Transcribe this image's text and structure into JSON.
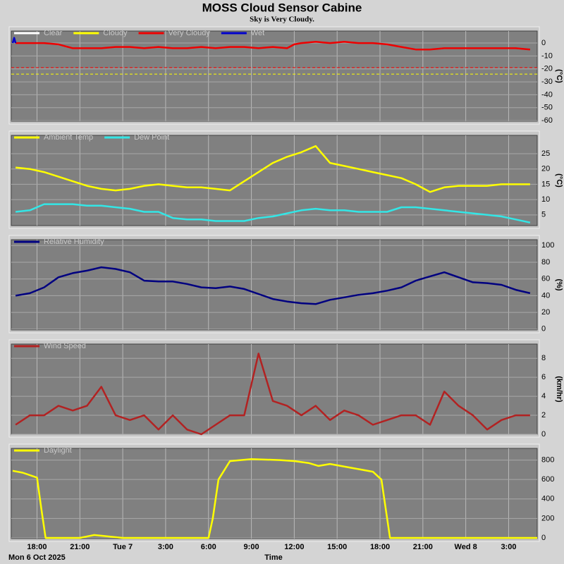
{
  "chart_data": [
    {
      "type": "line",
      "title": "MOSS Cloud Sensor Cabine",
      "subtitle": "Sky is Very Cloudy.",
      "y_label": "(°C)",
      "ylim": [
        -60.5,
        9.3
      ],
      "yticks": [
        0,
        -10,
        -20,
        -30,
        -40,
        -50,
        -60
      ],
      "thresholds": [
        {
          "value": -19,
          "color": "#ff0000"
        },
        {
          "value": -24,
          "color": "#ffff00"
        }
      ],
      "series": [
        {
          "name": "Clear",
          "color": "#ffffff"
        },
        {
          "name": "Cloudy",
          "color": "#ffff00"
        },
        {
          "name": "Very Cloudy",
          "color": "#ee0000",
          "x": [
            16.5,
            17.5,
            18.5,
            19.5,
            20.5,
            21.5,
            22.5,
            23.5,
            24.5,
            25.5,
            26.5,
            27.5,
            28.5,
            29.5,
            30.5,
            31.5,
            32.5,
            33.5,
            34.5,
            35.5,
            36,
            36.5,
            37.5,
            38.5,
            39.5,
            40.5,
            41.5,
            42.5,
            43.5,
            44.5,
            45.5,
            46.5,
            47.5,
            48.5,
            49.5,
            50.5,
            51.5,
            52.5
          ],
          "values": [
            0,
            0,
            0,
            -1,
            -4,
            -4,
            -4,
            -3,
            -3,
            -4,
            -3,
            -4,
            -4,
            -3,
            -4,
            -3,
            -3,
            -4,
            -3,
            -4,
            -1,
            0,
            1,
            0,
            1,
            0,
            0,
            -1,
            -3,
            -5,
            -5,
            -4,
            -4,
            -4,
            -4,
            -4,
            -4,
            -5
          ]
        },
        {
          "name": "Wet",
          "color": "#0000cc",
          "x": [
            16.3,
            16.4,
            16.5
          ],
          "values": [
            0,
            4,
            0
          ]
        }
      ]
    },
    {
      "type": "line",
      "y_label": "(°C)",
      "ylim": [
        1.5,
        31
      ],
      "yticks": [
        5,
        10,
        15,
        20,
        25
      ],
      "x": [
        16.5,
        17.5,
        18.5,
        19.5,
        20.5,
        21.5,
        22.5,
        23.5,
        24.5,
        25.5,
        26.5,
        27.5,
        28.5,
        29.5,
        30.5,
        31.5,
        32.5,
        33.5,
        34.5,
        35.5,
        36.5,
        37.5,
        38.5,
        39.5,
        40.5,
        41.5,
        42.5,
        43.5,
        44.5,
        45.5,
        46.5,
        47.5,
        48.5,
        49.5,
        50.5,
        51.5,
        52.5
      ],
      "series": [
        {
          "name": "Ambient Temp",
          "color": "#ffff00",
          "values": [
            20.5,
            20,
            19,
            17.5,
            16,
            14.5,
            13.5,
            13,
            13.5,
            14.5,
            15,
            14.5,
            14,
            14,
            13.5,
            13,
            16,
            19,
            22,
            24,
            25.5,
            27.5,
            22,
            21,
            20,
            19,
            18,
            17,
            15,
            12.5,
            14,
            14.5,
            14.5,
            14.5,
            15,
            15,
            15
          ]
        },
        {
          "name": "Dew Point",
          "color": "#33e6e6",
          "values": [
            6,
            6.5,
            8.5,
            8.5,
            8.5,
            8,
            8,
            7.5,
            7,
            6,
            6,
            4,
            3.5,
            3.5,
            3,
            3,
            3,
            4,
            4.5,
            5.5,
            6.5,
            7,
            6.5,
            6.5,
            6,
            6,
            6,
            7.5,
            7.5,
            7,
            6.5,
            6,
            5.5,
            5,
            4.5,
            3.5,
            2.5
          ]
        }
      ]
    },
    {
      "type": "line",
      "y_label": "(%)",
      "ylim": [
        -1,
        107
      ],
      "yticks": [
        0,
        20,
        40,
        60,
        80,
        100
      ],
      "x": [
        16.5,
        17.5,
        18.5,
        19.5,
        20.5,
        21.5,
        22.5,
        23.5,
        24.5,
        25.5,
        26.5,
        27.5,
        28.5,
        29.5,
        30.5,
        31.5,
        32.5,
        33.5,
        34.5,
        35.5,
        36.5,
        37.5,
        38.5,
        39.5,
        40.5,
        41.5,
        42.5,
        43.5,
        44.5,
        45.5,
        46.5,
        47.5,
        48.5,
        49.5,
        50.5,
        51.5,
        52.5
      ],
      "series": [
        {
          "name": "Relative Humidity",
          "color": "#000080",
          "values": [
            40,
            43,
            50,
            62,
            67,
            70,
            74,
            72,
            68,
            58,
            57,
            57,
            54,
            50,
            49,
            51,
            48,
            42,
            36,
            33,
            31,
            30,
            35,
            38,
            41,
            43,
            46,
            50,
            58,
            63,
            68,
            62,
            56,
            55,
            53,
            47,
            43
          ]
        }
      ]
    },
    {
      "type": "line",
      "y_label": "(km/hr)",
      "ylim": [
        0,
        9.5
      ],
      "yticks": [
        0,
        2,
        4,
        6,
        8
      ],
      "x": [
        16.5,
        17.5,
        18.5,
        19.5,
        20.5,
        21.5,
        22.5,
        23.5,
        24.5,
        25.5,
        26.5,
        27.5,
        28.5,
        29.5,
        30.5,
        31.5,
        32.5,
        33.5,
        34.5,
        35.5,
        36.5,
        37.5,
        38.5,
        39.5,
        40.5,
        41.5,
        42.5,
        43.5,
        44.5,
        45.5,
        46.5,
        47.5,
        48.5,
        49.5,
        50.5,
        51.5,
        52.5
      ],
      "series": [
        {
          "name": "Wind Speed",
          "color": "#b22222",
          "values": [
            1,
            2,
            2,
            3,
            2.5,
            3,
            5,
            2,
            1.5,
            2,
            0.5,
            2,
            0.5,
            0,
            1,
            2,
            2,
            8.5,
            3.5,
            3,
            2,
            3,
            1.5,
            2.5,
            2,
            1,
            1.5,
            2,
            2,
            1,
            4.5,
            3,
            2,
            0.5,
            1.5,
            2,
            2
          ]
        }
      ]
    },
    {
      "type": "line",
      "y_label": null,
      "ylim": [
        -7,
        920
      ],
      "yticks": [
        0,
        200,
        400,
        600,
        800
      ],
      "xlim": [
        16.2,
        53
      ],
      "x_label": "Time",
      "date_label": "Mon 6 Oct 2025",
      "xticks": [
        {
          "value": 18,
          "label": "18:00"
        },
        {
          "value": 21,
          "label": "21:00"
        },
        {
          "value": 24,
          "label": "Tue 7"
        },
        {
          "value": 27,
          "label": "3:00"
        },
        {
          "value": 30,
          "label": "6:00"
        },
        {
          "value": 33,
          "label": "9:00"
        },
        {
          "value": 36,
          "label": "12:00"
        },
        {
          "value": 39,
          "label": "15:00"
        },
        {
          "value": 42,
          "label": "18:00"
        },
        {
          "value": 45,
          "label": "21:00"
        },
        {
          "value": 48,
          "label": "Wed 8"
        },
        {
          "value": 51,
          "label": "3:00"
        }
      ],
      "series": [
        {
          "name": "Daylight",
          "color": "#ffff00",
          "x": [
            16.3,
            17,
            18,
            18.3,
            18.6,
            21,
            22,
            24,
            30,
            30.3,
            30.7,
            31.5,
            33,
            35,
            36,
            37,
            37.7,
            38.5,
            40,
            41.5,
            42.1,
            42.4,
            42.7,
            53
          ],
          "values": [
            690,
            670,
            620,
            300,
            0,
            0,
            30,
            0,
            0,
            200,
            600,
            790,
            810,
            800,
            790,
            770,
            740,
            760,
            720,
            680,
            600,
            300,
            0,
            0
          ]
        }
      ]
    }
  ]
}
